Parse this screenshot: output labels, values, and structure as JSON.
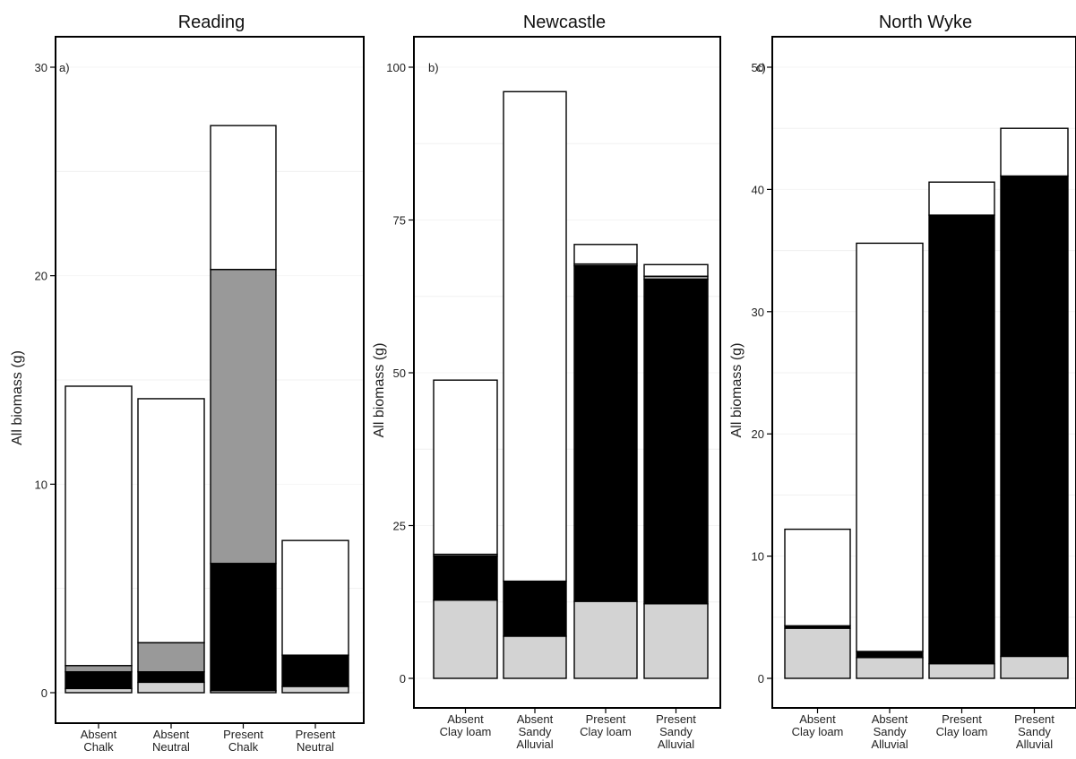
{
  "chart_data": [
    {
      "type": "bar",
      "stacked": true,
      "title": "Reading",
      "panel_label": "a)",
      "ylabel": "All biomass (g)",
      "ylim": [
        -1.2,
        31.5
      ],
      "yticks": [
        0,
        10,
        20,
        30
      ],
      "categories": [
        [
          "Absent",
          "Chalk"
        ],
        [
          "Absent",
          "Neutral"
        ],
        [
          "Present",
          "Chalk"
        ],
        [
          "Present",
          "Neutral"
        ]
      ],
      "series": [
        {
          "fill": "#d3d3d3",
          "values": [
            0.2,
            0.5,
            0.1,
            0.3
          ]
        },
        {
          "fill": "#000000",
          "values": [
            0.8,
            0.5,
            6.1,
            1.5
          ]
        },
        {
          "fill": "#999999",
          "values": [
            0.3,
            1.4,
            14.1,
            0
          ]
        },
        {
          "fill": "#ffffff",
          "values": [
            13.4,
            11.7,
            6.9,
            5.5
          ]
        }
      ],
      "grid": "faint horizontal"
    },
    {
      "type": "bar",
      "stacked": true,
      "title": "Newcastle",
      "panel_label": "b)",
      "ylabel": "All biomass (g)",
      "ylim": [
        -3,
        104
      ],
      "yticks": [
        0,
        25,
        50,
        75,
        100
      ],
      "categories": [
        [
          "Absent",
          "Clay loam"
        ],
        [
          "Absent",
          "Sandy",
          "Alluvial"
        ],
        [
          "Present",
          "Clay loam"
        ],
        [
          "Present",
          "Sandy",
          "Alluvial"
        ]
      ],
      "series": [
        {
          "fill": "#d3d3d3",
          "values": [
            12.8,
            6.9,
            12.6,
            12.2
          ]
        },
        {
          "fill": "#000000",
          "values": [
            7.2,
            9.0,
            54.9,
            53.1
          ]
        },
        {
          "fill": "#999999",
          "values": [
            0.3,
            0,
            0.3,
            0.5
          ]
        },
        {
          "fill": "#ffffff",
          "values": [
            28.5,
            80.1,
            3.2,
            1.9
          ]
        }
      ],
      "grid": "faint horizontal"
    },
    {
      "type": "bar",
      "stacked": true,
      "title": "North Wyke",
      "panel_label": "c)",
      "ylabel": "All biomass (g)",
      "ylim": [
        -1.5,
        52
      ],
      "yticks": [
        0,
        10,
        20,
        30,
        40,
        50
      ],
      "categories": [
        [
          "Absent",
          "Clay loam"
        ],
        [
          "Absent",
          "Sandy",
          "Alluvial"
        ],
        [
          "Present",
          "Clay loam"
        ],
        [
          "Present",
          "Sandy",
          "Alluvial"
        ]
      ],
      "series": [
        {
          "fill": "#d3d3d3",
          "values": [
            4.1,
            1.7,
            1.2,
            1.8
          ]
        },
        {
          "fill": "#000000",
          "values": [
            0.2,
            0.5,
            36.7,
            39.3
          ]
        },
        {
          "fill": "#999999",
          "values": [
            0,
            0,
            0,
            0
          ]
        },
        {
          "fill": "#ffffff",
          "values": [
            7.9,
            33.4,
            2.7,
            3.9
          ]
        }
      ],
      "grid": "faint horizontal"
    }
  ]
}
